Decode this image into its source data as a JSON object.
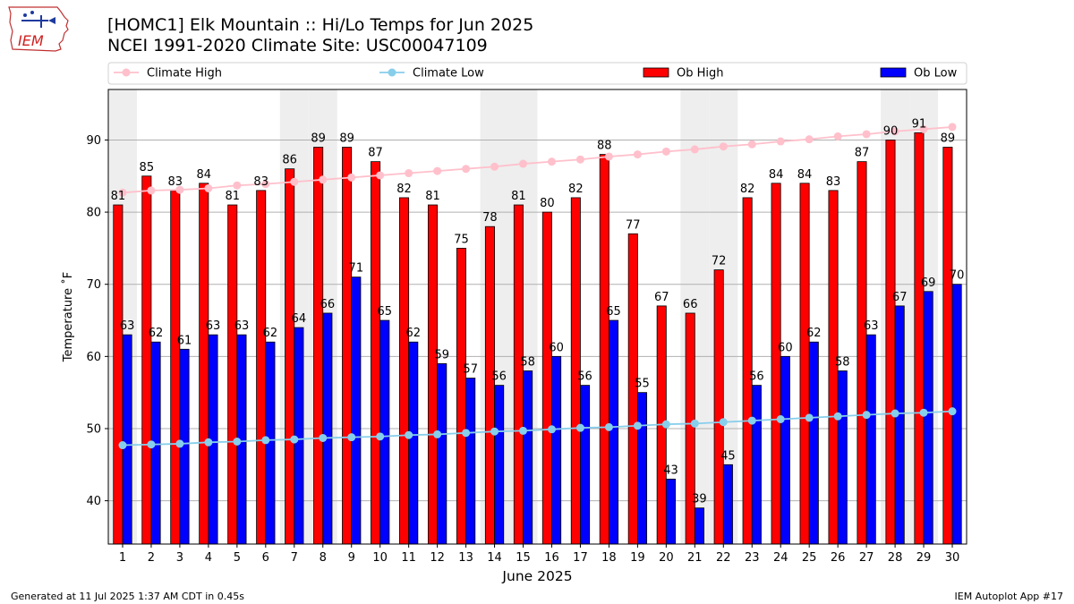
{
  "header": {
    "title_line1": "[HOMC1] Elk Mountain :: Hi/Lo Temps for Jun 2025",
    "title_line2": "NCEI 1991-2020 Climate Site: USC00047109"
  },
  "logo": {
    "text": "IEM",
    "icon": "iem-iowa-logo-icon"
  },
  "footer": {
    "generated": "Generated at 11 Jul 2025 1:37 AM CDT in 0.45s",
    "app": "IEM Autoplot App #17"
  },
  "colors": {
    "ob_high": "#ff0000",
    "ob_low": "#0000ff",
    "climate_high": "#ffc0cb",
    "climate_low": "#87ceeb",
    "weekend_band": "#eeeeee",
    "grid": "#b0b0b0"
  },
  "chart_data": {
    "type": "bar",
    "xlabel": "June 2025",
    "ylabel": "Temperature ˚F",
    "ylim": [
      34,
      97
    ],
    "yticks": [
      40,
      50,
      60,
      70,
      80,
      90
    ],
    "grid": "horizontal",
    "legend_position": "top",
    "categories": [
      "1",
      "2",
      "3",
      "4",
      "5",
      "6",
      "7",
      "8",
      "9",
      "10",
      "11",
      "12",
      "13",
      "14",
      "15",
      "16",
      "17",
      "18",
      "19",
      "20",
      "21",
      "22",
      "23",
      "24",
      "25",
      "26",
      "27",
      "28",
      "29",
      "30"
    ],
    "shaded_days": [
      1,
      7,
      8,
      14,
      15,
      21,
      22,
      28,
      29
    ],
    "series": [
      {
        "name": "Climate High",
        "type": "line",
        "values": [
          82.7,
          83.0,
          83.1,
          83.3,
          83.7,
          83.9,
          84.2,
          84.5,
          84.8,
          85.1,
          85.4,
          85.7,
          86.0,
          86.3,
          86.7,
          87.0,
          87.3,
          87.7,
          88.0,
          88.4,
          88.7,
          89.1,
          89.4,
          89.8,
          90.1,
          90.5,
          90.8,
          91.2,
          91.5,
          91.8
        ]
      },
      {
        "name": "Climate Low",
        "type": "line",
        "values": [
          47.7,
          47.8,
          47.9,
          48.1,
          48.2,
          48.4,
          48.5,
          48.7,
          48.8,
          48.9,
          49.1,
          49.2,
          49.4,
          49.6,
          49.7,
          49.9,
          50.1,
          50.2,
          50.4,
          50.6,
          50.7,
          50.9,
          51.1,
          51.3,
          51.5,
          51.7,
          51.9,
          52.1,
          52.2,
          52.4
        ]
      },
      {
        "name": "Ob High",
        "type": "bar",
        "values": [
          81,
          85,
          83,
          84,
          81,
          83,
          86,
          89,
          89,
          87,
          82,
          81,
          75,
          78,
          81,
          80,
          82,
          88,
          77,
          67,
          66,
          72,
          82,
          84,
          84,
          83,
          87,
          90,
          91,
          89
        ]
      },
      {
        "name": "Ob Low",
        "type": "bar",
        "values": [
          63,
          62,
          61,
          63,
          63,
          62,
          64,
          66,
          71,
          65,
          62,
          59,
          57,
          56,
          58,
          60,
          56,
          65,
          55,
          43,
          39,
          45,
          56,
          60,
          62,
          58,
          63,
          67,
          69,
          70
        ]
      }
    ]
  }
}
